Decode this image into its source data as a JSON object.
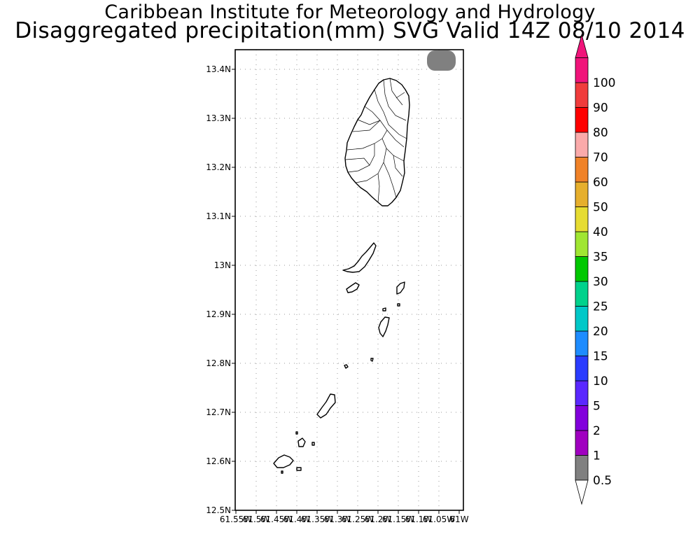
{
  "header": {
    "line1": "Caribbean Institute for Meteorology and Hydrology",
    "line2": "Disaggregated precipitation(mm) SVG Valid 14Z 08/10 2014"
  },
  "map": {
    "region": "St. Vincent and the Grenadines",
    "lat_labels": [
      "13.4N",
      "13.3N",
      "13.2N",
      "13.1N",
      "13N",
      "12.9N",
      "12.8N",
      "12.7N",
      "12.6N",
      "12.5N"
    ],
    "lon_labels": [
      "61.55W",
      "61.5W",
      "61.45W",
      "61.4W",
      "61.35W",
      "61.3W",
      "61.25W",
      "61.2W",
      "61.15W",
      "61.1W",
      "61.05W",
      "61W"
    ],
    "lat_range": [
      12.5,
      13.44
    ],
    "lon_range": [
      -61.55,
      -60.98
    ],
    "precip_area": {
      "lon": -61.02,
      "lat": 13.42,
      "class": "0.5-1"
    }
  },
  "legend": {
    "labels": [
      "0.5",
      "1",
      "2",
      "5",
      "10",
      "15",
      "20",
      "25",
      "30",
      "35",
      "40",
      "50",
      "60",
      "70",
      "80",
      "90",
      "100"
    ],
    "colors": [
      "#808080",
      "#a000c0",
      "#8200dc",
      "#5a28ff",
      "#2a3cff",
      "#1e8cff",
      "#00c8c8",
      "#00d28c",
      "#00c800",
      "#a0e632",
      "#e6dc32",
      "#e6af2d",
      "#f08228",
      "#faaaaa",
      "#ff0000",
      "#f03c3c",
      "#f0147a"
    ],
    "low_color": "#ffffff",
    "high_color": "#f0147a"
  }
}
